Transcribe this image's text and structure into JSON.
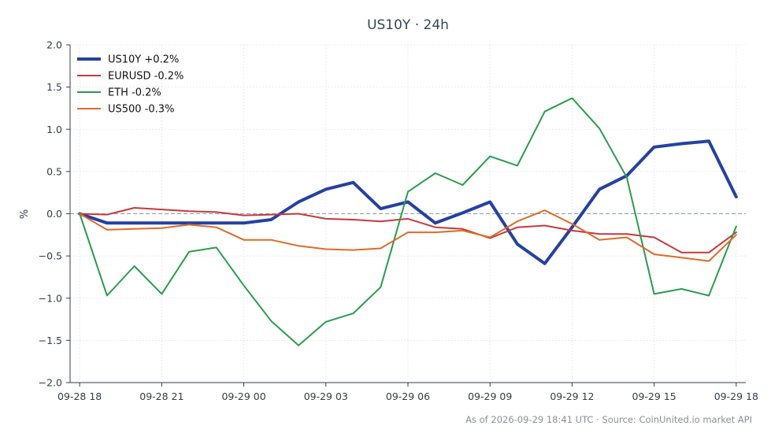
{
  "chart_data": {
    "type": "line",
    "title": "US10Y · 24h",
    "xlabel": "",
    "ylabel": "%",
    "ylim": [
      -2.0,
      2.0
    ],
    "yticks": [
      2.0,
      1.5,
      1.0,
      0.5,
      0.0,
      -0.5,
      -1.0,
      -1.5,
      -2.0
    ],
    "ytick_labels": [
      "2.0",
      "1.5",
      "1.0",
      "0.5",
      "0.0",
      "−0.5",
      "−1.0",
      "−1.5",
      "−2.0"
    ],
    "xlim": [
      -0.35,
      24.35
    ],
    "xticks": [
      0,
      3,
      6,
      9,
      12,
      15,
      18,
      21,
      24
    ],
    "xtick_labels": [
      "09-28 18",
      "09-28 21",
      "09-29 00",
      "09-29 03",
      "09-29 06",
      "09-29 09",
      "09-29 12",
      "09-29 15",
      "09-29 18"
    ],
    "x": [
      0,
      1,
      2,
      3,
      4,
      5,
      6,
      7,
      8,
      9,
      10,
      11,
      12,
      13,
      14,
      15,
      16,
      17,
      18,
      19,
      20,
      21,
      22,
      23,
      24
    ],
    "grid": true,
    "legend_position": "top-left",
    "zero_line": true,
    "series": [
      {
        "name": "US10Y +0.2%",
        "color": "#2541a0",
        "width": 4,
        "values": [
          0.0,
          -0.11,
          -0.11,
          -0.11,
          -0.11,
          -0.11,
          -0.11,
          -0.07,
          0.14,
          0.29,
          0.37,
          0.06,
          0.14,
          -0.11,
          0.01,
          0.14,
          -0.36,
          -0.59,
          -0.16,
          0.29,
          0.45,
          0.79,
          0.83,
          0.86,
          0.2
        ]
      },
      {
        "name": "EURUSD -0.2%",
        "color": "#c7393b",
        "width": 2,
        "values": [
          0.0,
          -0.01,
          0.07,
          0.05,
          0.03,
          0.02,
          -0.02,
          -0.01,
          0.0,
          -0.06,
          -0.07,
          -0.09,
          -0.06,
          -0.16,
          -0.18,
          -0.29,
          -0.16,
          -0.14,
          -0.2,
          -0.24,
          -0.24,
          -0.28,
          -0.46,
          -0.46,
          -0.22
        ]
      },
      {
        "name": "ETH -0.2%",
        "color": "#2a9c4c",
        "width": 2,
        "values": [
          0.0,
          -0.97,
          -0.62,
          -0.95,
          -0.45,
          -0.4,
          -0.85,
          -1.27,
          -1.56,
          -1.28,
          -1.18,
          -0.87,
          0.26,
          0.48,
          0.34,
          0.68,
          0.57,
          1.21,
          1.37,
          1.01,
          0.43,
          -0.95,
          -0.89,
          -0.97,
          -0.15
        ]
      },
      {
        "name": "US500 -0.3%",
        "color": "#de6b27",
        "width": 2,
        "values": [
          0.0,
          -0.19,
          -0.18,
          -0.17,
          -0.13,
          -0.16,
          -0.31,
          -0.31,
          -0.38,
          -0.42,
          -0.43,
          -0.41,
          -0.22,
          -0.22,
          -0.2,
          -0.28,
          -0.09,
          0.04,
          -0.12,
          -0.31,
          -0.28,
          -0.48,
          -0.52,
          -0.56,
          -0.25
        ]
      }
    ]
  },
  "footer": "As of 2026-09-29 18:41 UTC · Source: CoinUnited.io market API"
}
